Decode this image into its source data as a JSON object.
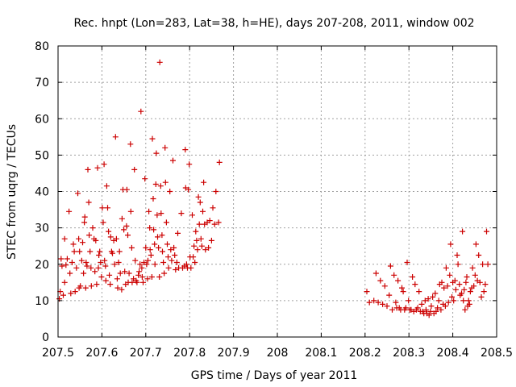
{
  "chart_data": {
    "type": "scatter",
    "title": "Rec. hnpt (Lon=283, Lat=38, h=HE), days 207-208, 2011, window 002",
    "xlabel": "GPS time / Days of year 2011",
    "ylabel": "STEC from uqrg / TECUs",
    "xlim": [
      207.5,
      208.5
    ],
    "ylim": [
      0,
      80
    ],
    "grid": true,
    "marker": "plus",
    "color": "#cc0000",
    "x_ticks": [
      {
        "value": 207.5,
        "label": "207.5"
      },
      {
        "value": 207.6,
        "label": "207.6"
      },
      {
        "value": 207.7,
        "label": "207.7"
      },
      {
        "value": 207.8,
        "label": "207.8"
      },
      {
        "value": 207.9,
        "label": "207.9"
      },
      {
        "value": 208.0,
        "label": "208"
      },
      {
        "value": 208.1,
        "label": "208.1"
      },
      {
        "value": 208.2,
        "label": "208.2"
      },
      {
        "value": 208.3,
        "label": "208.3"
      },
      {
        "value": 208.4,
        "label": "208.4"
      },
      {
        "value": 208.5,
        "label": "208.5"
      }
    ],
    "y_ticks": [
      {
        "value": 0,
        "label": "0"
      },
      {
        "value": 10,
        "label": "10"
      },
      {
        "value": 20,
        "label": "20"
      },
      {
        "value": 30,
        "label": "30"
      },
      {
        "value": 40,
        "label": "40"
      },
      {
        "value": 50,
        "label": "50"
      },
      {
        "value": 60,
        "label": "60"
      },
      {
        "value": 70,
        "label": "70"
      },
      {
        "value": 80,
        "label": "80"
      }
    ],
    "points": [
      [
        207.503,
        10.5
      ],
      [
        207.505,
        12.5
      ],
      [
        207.507,
        21.5
      ],
      [
        207.509,
        19.5
      ],
      [
        207.512,
        11.5
      ],
      [
        207.515,
        27.0
      ],
      [
        207.515,
        15.0
      ],
      [
        207.518,
        19.8
      ],
      [
        207.521,
        21.5
      ],
      [
        207.525,
        34.5
      ],
      [
        207.527,
        17.5
      ],
      [
        207.529,
        12.0
      ],
      [
        207.532,
        20.5
      ],
      [
        207.535,
        25.5
      ],
      [
        207.537,
        23.5
      ],
      [
        207.539,
        12.5
      ],
      [
        207.542,
        19.0
      ],
      [
        207.545,
        39.5
      ],
      [
        207.547,
        27.0
      ],
      [
        207.548,
        13.5
      ],
      [
        207.549,
        23.5
      ],
      [
        207.551,
        14.0
      ],
      [
        207.554,
        21.0
      ],
      [
        207.556,
        26.0
      ],
      [
        207.558,
        17.5
      ],
      [
        207.56,
        31.5
      ],
      [
        207.561,
        33.0
      ],
      [
        207.563,
        13.5
      ],
      [
        207.564,
        20.5
      ],
      [
        207.566,
        19.5
      ],
      [
        207.568,
        46.0
      ],
      [
        207.57,
        37.0
      ],
      [
        207.571,
        28.0
      ],
      [
        207.573,
        23.5
      ],
      [
        207.575,
        19.0
      ],
      [
        207.576,
        14.0
      ],
      [
        207.579,
        30.0
      ],
      [
        207.582,
        27.0
      ],
      [
        207.584,
        18.0
      ],
      [
        207.586,
        26.5
      ],
      [
        207.588,
        14.5
      ],
      [
        207.59,
        46.5
      ],
      [
        207.592,
        19.0
      ],
      [
        207.593,
        22.5
      ],
      [
        207.595,
        23.5
      ],
      [
        207.597,
        20.5
      ],
      [
        207.599,
        16.5
      ],
      [
        207.601,
        35.5
      ],
      [
        207.603,
        31.5
      ],
      [
        207.605,
        47.5
      ],
      [
        207.606,
        21.0
      ],
      [
        207.608,
        19.5
      ],
      [
        207.609,
        15.5
      ],
      [
        207.611,
        41.5
      ],
      [
        207.613,
        35.5
      ],
      [
        207.615,
        29.0
      ],
      [
        207.617,
        17.0
      ],
      [
        207.619,
        14.5
      ],
      [
        207.62,
        27.5
      ],
      [
        207.622,
        23.5
      ],
      [
        207.624,
        23.0
      ],
      [
        207.627,
        26.5
      ],
      [
        207.629,
        20.0
      ],
      [
        207.631,
        55.0
      ],
      [
        207.633,
        27.0
      ],
      [
        207.635,
        16.0
      ],
      [
        207.636,
        13.5
      ],
      [
        207.638,
        20.5
      ],
      [
        207.64,
        23.5
      ],
      [
        207.642,
        17.5
      ],
      [
        207.645,
        13.0
      ],
      [
        207.646,
        32.5
      ],
      [
        207.648,
        40.5
      ],
      [
        207.65,
        29.5
      ],
      [
        207.652,
        18.0
      ],
      [
        207.654,
        14.5
      ],
      [
        207.656,
        30.5
      ],
      [
        207.657,
        40.5
      ],
      [
        207.659,
        28.0
      ],
      [
        207.66,
        15.0
      ],
      [
        207.662,
        17.5
      ],
      [
        207.665,
        53.0
      ],
      [
        207.666,
        34.5
      ],
      [
        207.668,
        24.5
      ],
      [
        207.669,
        15.0
      ],
      [
        207.672,
        16.0
      ],
      [
        207.674,
        46.0
      ],
      [
        207.676,
        21.0
      ],
      [
        207.678,
        15.5
      ],
      [
        207.68,
        15.0
      ],
      [
        207.683,
        17.0
      ],
      [
        207.685,
        18.0
      ],
      [
        207.687,
        20.0
      ],
      [
        207.689,
        62.0
      ],
      [
        207.691,
        19.0
      ],
      [
        207.692,
        16.5
      ],
      [
        207.694,
        15.0
      ],
      [
        207.696,
        20.5
      ],
      [
        207.698,
        43.5
      ],
      [
        207.7,
        24.5
      ],
      [
        207.702,
        20.0
      ],
      [
        207.704,
        16.0
      ],
      [
        207.705,
        21.0
      ],
      [
        207.707,
        34.5
      ],
      [
        207.709,
        30.0
      ],
      [
        207.71,
        24.0
      ],
      [
        207.712,
        22.5
      ],
      [
        207.714,
        16.5
      ],
      [
        207.715,
        54.5
      ],
      [
        207.717,
        38.0
      ],
      [
        207.718,
        29.5
      ],
      [
        207.72,
        25.5
      ],
      [
        207.721,
        20.0
      ],
      [
        207.723,
        42.0
      ],
      [
        207.724,
        50.5
      ],
      [
        207.726,
        33.5
      ],
      [
        207.727,
        27.5
      ],
      [
        207.729,
        24.5
      ],
      [
        207.731,
        16.5
      ],
      [
        207.732,
        75.5
      ],
      [
        207.734,
        41.5
      ],
      [
        207.735,
        34.0
      ],
      [
        207.737,
        28.0
      ],
      [
        207.738,
        23.5
      ],
      [
        207.74,
        20.5
      ],
      [
        207.742,
        17.5
      ],
      [
        207.744,
        52.0
      ],
      [
        207.745,
        42.5
      ],
      [
        207.747,
        31.5
      ],
      [
        207.749,
        25.5
      ],
      [
        207.751,
        22.0
      ],
      [
        207.752,
        19.0
      ],
      [
        207.755,
        40.0
      ],
      [
        207.757,
        24.0
      ],
      [
        207.759,
        21.0
      ],
      [
        207.762,
        48.5
      ],
      [
        207.764,
        24.5
      ],
      [
        207.766,
        22.5
      ],
      [
        207.768,
        18.5
      ],
      [
        207.771,
        20.5
      ],
      [
        207.773,
        28.5
      ],
      [
        207.775,
        19.0
      ],
      [
        207.781,
        34.0
      ],
      [
        207.784,
        19.0
      ],
      [
        207.788,
        19.5
      ],
      [
        207.79,
        51.5
      ],
      [
        207.791,
        41.0
      ],
      [
        207.793,
        20.0
      ],
      [
        207.795,
        19.0
      ],
      [
        207.797,
        40.5
      ],
      [
        207.799,
        47.5
      ],
      [
        207.801,
        22.0
      ],
      [
        207.803,
        19.0
      ],
      [
        207.806,
        33.5
      ],
      [
        207.808,
        22.0
      ],
      [
        207.81,
        25.0
      ],
      [
        207.812,
        20.5
      ],
      [
        207.814,
        29.0
      ],
      [
        207.816,
        26.5
      ],
      [
        207.818,
        24.0
      ],
      [
        207.82,
        38.5
      ],
      [
        207.822,
        31.0
      ],
      [
        207.824,
        37.0
      ],
      [
        207.826,
        27.0
      ],
      [
        207.828,
        25.0
      ],
      [
        207.83,
        34.5
      ],
      [
        207.832,
        42.5
      ],
      [
        207.834,
        31.0
      ],
      [
        207.836,
        24.0
      ],
      [
        207.84,
        31.5
      ],
      [
        207.843,
        24.5
      ],
      [
        207.846,
        32.0
      ],
      [
        207.85,
        26.5
      ],
      [
        207.853,
        35.5
      ],
      [
        207.857,
        31.0
      ],
      [
        207.86,
        40.0
      ],
      [
        207.866,
        31.5
      ],
      [
        207.868,
        48.0
      ],
      [
        208.204,
        12.5
      ],
      [
        208.21,
        9.5
      ],
      [
        208.22,
        10.0
      ],
      [
        208.225,
        17.5
      ],
      [
        208.23,
        9.5
      ],
      [
        208.235,
        15.5
      ],
      [
        208.24,
        9.0
      ],
      [
        208.245,
        14.0
      ],
      [
        208.25,
        8.5
      ],
      [
        208.255,
        11.5
      ],
      [
        208.258,
        19.5
      ],
      [
        208.262,
        7.5
      ],
      [
        208.266,
        17.0
      ],
      [
        208.27,
        9.5
      ],
      [
        208.272,
        8.0
      ],
      [
        208.275,
        15.5
      ],
      [
        208.278,
        8.0
      ],
      [
        208.281,
        7.5
      ],
      [
        208.284,
        13.5
      ],
      [
        208.287,
        12.5
      ],
      [
        208.29,
        7.5
      ],
      [
        208.293,
        8.0
      ],
      [
        208.296,
        20.5
      ],
      [
        208.299,
        10.0
      ],
      [
        208.302,
        7.5
      ],
      [
        208.305,
        7.5
      ],
      [
        208.308,
        16.5
      ],
      [
        208.311,
        7.0
      ],
      [
        208.314,
        14.5
      ],
      [
        208.317,
        7.5
      ],
      [
        208.32,
        8.0
      ],
      [
        208.323,
        12.5
      ],
      [
        208.326,
        7.0
      ],
      [
        208.329,
        9.0
      ],
      [
        208.331,
        7.0
      ],
      [
        208.334,
        6.5
      ],
      [
        208.337,
        10.0
      ],
      [
        208.339,
        7.5
      ],
      [
        208.341,
        6.5
      ],
      [
        208.344,
        10.5
      ],
      [
        208.346,
        6.0
      ],
      [
        208.349,
        7.0
      ],
      [
        208.351,
        8.5
      ],
      [
        208.354,
        11.0
      ],
      [
        208.357,
        6.5
      ],
      [
        208.36,
        12.0
      ],
      [
        208.362,
        7.0
      ],
      [
        208.365,
        8.0
      ],
      [
        208.368,
        10.0
      ],
      [
        208.37,
        14.5
      ],
      [
        208.373,
        7.5
      ],
      [
        208.375,
        15.0
      ],
      [
        208.378,
        9.0
      ],
      [
        208.38,
        13.5
      ],
      [
        208.383,
        8.5
      ],
      [
        208.385,
        19.0
      ],
      [
        208.388,
        14.0
      ],
      [
        208.39,
        9.5
      ],
      [
        208.393,
        17.0
      ],
      [
        208.395,
        25.5
      ],
      [
        208.398,
        11.0
      ],
      [
        208.4,
        15.0
      ],
      [
        208.402,
        10.0
      ],
      [
        208.405,
        15.5
      ],
      [
        208.407,
        13.0
      ],
      [
        208.41,
        22.5
      ],
      [
        208.412,
        20.0
      ],
      [
        208.415,
        14.5
      ],
      [
        208.417,
        11.5
      ],
      [
        208.42,
        12.0
      ],
      [
        208.422,
        29.0
      ],
      [
        208.424,
        10.0
      ],
      [
        208.426,
        13.0
      ],
      [
        208.428,
        7.5
      ],
      [
        208.43,
        15.0
      ],
      [
        208.432,
        16.5
      ],
      [
        208.434,
        8.5
      ],
      [
        208.436,
        10.0
      ],
      [
        208.438,
        9.0
      ],
      [
        208.44,
        12.5
      ],
      [
        208.443,
        13.5
      ],
      [
        208.445,
        19.0
      ],
      [
        208.448,
        14.0
      ],
      [
        208.451,
        17.0
      ],
      [
        208.453,
        25.5
      ],
      [
        208.456,
        15.5
      ],
      [
        208.459,
        22.5
      ],
      [
        208.462,
        15.0
      ],
      [
        208.465,
        11.0
      ],
      [
        208.468,
        20.0
      ],
      [
        208.471,
        12.5
      ],
      [
        208.474,
        14.5
      ],
      [
        208.477,
        29.0
      ],
      [
        208.48,
        20.0
      ]
    ]
  }
}
